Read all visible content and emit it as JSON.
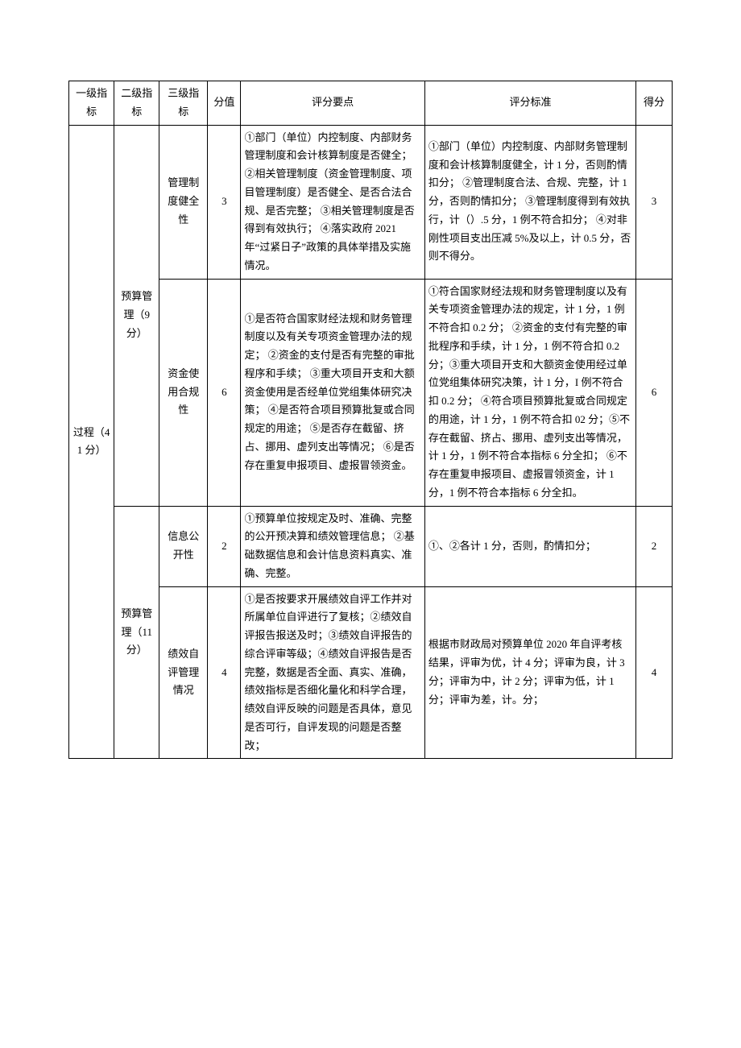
{
  "headers": {
    "c1": "一级指标",
    "c2": "二级指标",
    "c3": "三级指标",
    "c4": "分值",
    "c5": "评分要点",
    "c6": "评分标准",
    "c7": "得分"
  },
  "level1": {
    "label": "过程（41 分）"
  },
  "level2a": {
    "label": "预算管理（9分）"
  },
  "level2b": {
    "label": "预算管理（11分）"
  },
  "rows": {
    "r1": {
      "c3": "管理制度健全性",
      "c4": "3",
      "c5": "①部门（单位）内控制度、内部财务管理制度和会计核算制度是否健全；\n②相关管理制度（资金管理制度、项目管理制度）是否健全、是否合法合规、是否完整；\n③相关管理制度是否得到有效执行；\n④落实政府 2021 年“过紧日子”政策的具体举措及实施情况。",
      "c6": "①部门（单位）内控制度、内部财务管理制度和会计核算制度健全，计 1 分，否则酌情扣分；\n②管理制度合法、合规、完整，计 1 分，否则酌情扣分；\n③管理制度得到有效执行，计（）.5 分，1 例不符合扣分；\n④对非刚性项目支出压减 5%及以上，计 0.5 分，否则不得分。",
      "c7": "3"
    },
    "r2": {
      "c3": "资金使用合规性",
      "c4": "6",
      "c5": "①是否符合国家财经法规和财务管理制度以及有关专项资金管理办法的规定；\n②资金的支付是否有完整的审批程序和手续；\n③重大项目开支和大额资金使用是否经单位党组集体研究决策；\n④是否符合项目预算批复或合同规定的用途；\n⑤是否存在截留、挤占、挪用、虚列支出等情况；\n⑥是否存在重复申报项目、虚报冒领资金。",
      "c6": "①符合国家财经法规和财务管理制度以及有关专项资金管理办法的规定，计 1 分，1 例不符合扣 0.2 分；\n②资金的支付有完整的审批程序和手续，计 1 分，1 例不符合扣 0.2 分；③重大项目开支和大额资金使用经过单位党组集体研究决策，计 1 分，I 例不符合扣 0.2 分；\n④符合项目预算批复或合同规定的用途，计 1 分，1 例不符合扣 02 分；⑤不存在截留、挤占、挪用、虚列支出等情况，计 1 分，1 例不符合本指标 6 分全扣；\n⑥不存在重复申报项目、虚报冒领资金，计 1 分，1 例不符合本指标 6 分全扣。",
      "c7": "6"
    },
    "r3": {
      "c3": "信息公开性",
      "c4": "2",
      "c5": "①预算单位按规定及时、准确、完整的公开预决算和绩效管理信息；\n②基础数据信息和会计信息资料真实、准确、完整。",
      "c6": "①、②各计 1 分，否则，酌情扣分；",
      "c7": "2"
    },
    "r4": {
      "c3": "绩效自评管理情况",
      "c4": "4",
      "c5": "①是否按要求开展绩效自评工作并对所属单位自评进行了复核；②绩效自评报告报送及时；③绩效自评报告的综合评审等级；④绩效自评报告是否完整，数据是否全面、真实、准确，绩效指标是否细化量化和科学合理，绩效自评反映的问题是否具体，意见是否可行，自评发现的问题是否整改；",
      "c6": "根据市财政局对预算单位 2020 年自评考核结果，评审为优，计 4 分；评审为良，计 3 分；评审为中，计 2 分；评审为低，计 1 分；评审为差，计。分；",
      "c7": "4"
    }
  }
}
